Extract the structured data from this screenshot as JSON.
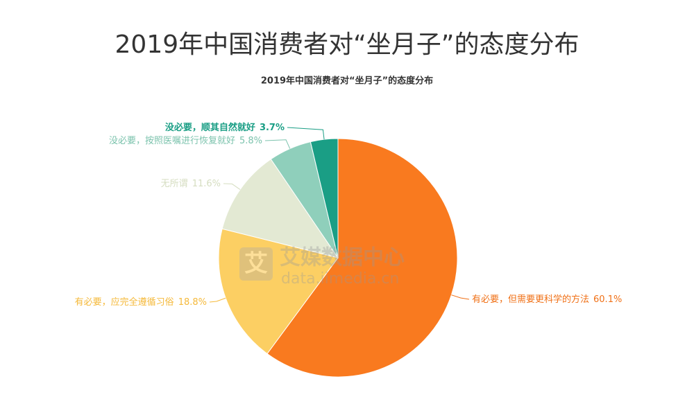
{
  "chart_data": {
    "type": "pie",
    "title": "2019年中国消费者对“坐月子”的态度分布",
    "subtitle": "2019年中国消费者对“坐月子”的态度分布",
    "categories": [
      "有必要，但需要更科学的方法",
      "有必要，应完全遵循习俗",
      "无所谓",
      "没必要，按照医嘱进行恢复就好",
      "没必要，顺其自然就好"
    ],
    "values": [
      60.1,
      18.8,
      11.6,
      5.8,
      3.7
    ],
    "value_labels": [
      "60.1%",
      "18.8%",
      "11.6%",
      "5.8%",
      "3.7%"
    ],
    "colors": [
      "#f97a1f",
      "#fccf63",
      "#e3e9d3",
      "#8fcfbb",
      "#1a9e85"
    ],
    "watermark": {
      "icon": "艾",
      "name": "艾媒数据中心",
      "url": "data.iimedia.cn"
    }
  }
}
